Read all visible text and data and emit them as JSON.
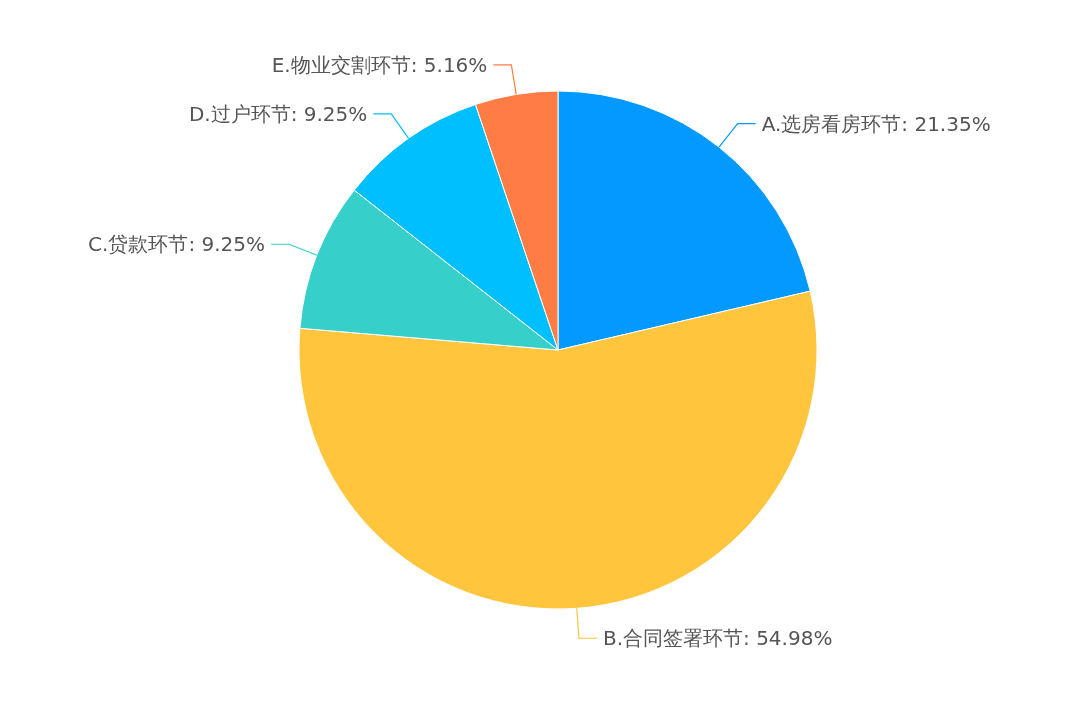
{
  "chart_data": {
    "type": "pie",
    "categories": [
      "A.选房看房环节",
      "B.合同签署环节",
      "C.贷款环节",
      "D.过户环节",
      "E.物业交割环节"
    ],
    "values": [
      21.35,
      54.98,
      9.25,
      9.25,
      5.16
    ],
    "value_labels": [
      "21.35%",
      "54.98%",
      "9.25%",
      "9.25%",
      "5.16%"
    ],
    "colors": [
      "#0399ff",
      "#ffc53d",
      "#36cfc9",
      "#00bfff",
      "#ff7c45"
    ]
  }
}
